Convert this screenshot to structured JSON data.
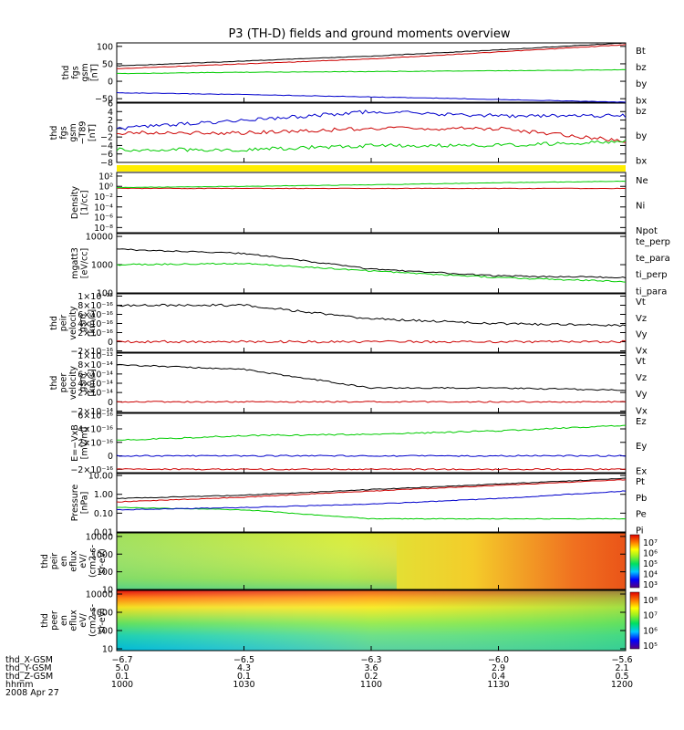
{
  "title": "P3 (TH-D) fields and ground moments overview",
  "panels": [
    {
      "id": "fgs",
      "ylabel": [
        "thd",
        "fgs",
        "gsm",
        "[nT]"
      ],
      "ticks": [
        "100",
        "50",
        "0",
        "−50"
      ],
      "legend": [
        {
          "text": "Bt",
          "color": "#000000"
        },
        {
          "text": "bz",
          "color": "#cc0000"
        },
        {
          "text": "by",
          "color": "#00cc00"
        },
        {
          "text": "bx",
          "color": "#0000cc"
        }
      ]
    },
    {
      "id": "fgs_hp",
      "ylabel": [
        "thd",
        "fgs",
        "gsm",
        "−T89",
        "[nT]"
      ],
      "ticks": [
        "6",
        "4",
        "2",
        "0",
        "−2",
        "−4",
        "−6",
        "−8"
      ],
      "legend": [
        {
          "text": "bz",
          "color": "#cc0000"
        },
        {
          "text": "by",
          "color": "#00cc00"
        },
        {
          "text": "bx",
          "color": "#0000cc"
        }
      ]
    },
    {
      "id": "density",
      "ylabel": [
        "Density",
        "[1/cc]"
      ],
      "ticks": [
        "10²",
        "10⁰",
        "10⁻²",
        "10⁻⁴",
        "10⁻⁶",
        "10⁻⁸"
      ],
      "legend": [
        {
          "text": "Ne",
          "color": "#cc0000"
        },
        {
          "text": "Ni",
          "color": "#00cc00"
        },
        {
          "text": "Npot",
          "color": "#0000cc"
        }
      ]
    },
    {
      "id": "temp",
      "ylabel": [
        "mgatt3",
        "[eV/cc]"
      ],
      "ticks": [
        "10000",
        "1000",
        "100"
      ],
      "legend": [
        {
          "text": "te_perp",
          "color": "#000000"
        },
        {
          "text": "te_para",
          "color": "#cc0000"
        },
        {
          "text": "ti_perp",
          "color": "#00cc00"
        },
        {
          "text": "ti_para",
          "color": "#0000cc"
        }
      ]
    },
    {
      "id": "ivel",
      "ylabel": [
        "thd",
        "peir",
        "velocity",
        "gsm",
        "[km/s]"
      ],
      "ticks": [
        "1×10⁻¹⁵",
        "8×10⁻¹⁶",
        "6×10⁻¹⁶",
        "4×10⁻¹⁶",
        "2×10⁻¹⁶",
        "0",
        "−2×10⁻¹⁶"
      ],
      "legend": [
        {
          "text": "Vt",
          "color": "#000000"
        },
        {
          "text": "Vz",
          "color": "#cc0000"
        },
        {
          "text": "Vy",
          "color": "#00cc00"
        },
        {
          "text": "Vx",
          "color": "#0000cc"
        }
      ]
    },
    {
      "id": "evel",
      "ylabel": [
        "thd",
        "peer",
        "velocity",
        "gsm",
        "[km/s]"
      ],
      "ticks": [
        "1×10⁻¹³",
        "8×10⁻¹⁴",
        "6×10⁻¹⁴",
        "4×10⁻¹⁴",
        "2×10⁻¹⁴",
        "0",
        "−2×10⁻¹⁴"
      ],
      "legend": [
        {
          "text": "Vt",
          "color": "#000000"
        },
        {
          "text": "Vz",
          "color": "#cc0000"
        },
        {
          "text": "Vy",
          "color": "#00cc00"
        },
        {
          "text": "Vx",
          "color": "#0000cc"
        }
      ]
    },
    {
      "id": "efield",
      "ylabel": [
        "E=−VxB",
        "[mV/m]"
      ],
      "ticks": [
        "6×10⁻¹⁶",
        "4×10⁻¹⁶",
        "2×10⁻¹⁶",
        "0",
        "−2×10⁻¹⁶"
      ],
      "legend": [
        {
          "text": "Ez",
          "color": "#cc0000"
        },
        {
          "text": "Ey",
          "color": "#00cc00"
        },
        {
          "text": "Ex",
          "color": "#0000cc"
        }
      ]
    },
    {
      "id": "pressure",
      "ylabel": [
        "Pressure",
        "[nPa]"
      ],
      "ticks": [
        "10.00",
        "1.00",
        "0.10",
        "0.01"
      ],
      "legend": [
        {
          "text": "Pt",
          "color": "#000000"
        },
        {
          "text": "Pb",
          "color": "#cc0000"
        },
        {
          "text": "Pe",
          "color": "#00cc00"
        },
        {
          "text": "Pi",
          "color": "#0000cc"
        }
      ]
    },
    {
      "id": "ispec",
      "ylabel": [
        "thd",
        "peir",
        "en",
        "eflux",
        "eV/",
        "(cm2-s-",
        "sr-eV)"
      ],
      "ticks": [
        "10000",
        "1000",
        "100",
        "10"
      ],
      "colorbar": [
        "10⁷",
        "10⁶",
        "10⁵",
        "10⁴",
        "10³"
      ]
    },
    {
      "id": "espec",
      "ylabel": [
        "thd",
        "peer",
        "en",
        "eflux",
        "eV/",
        "(cm2-s-",
        "sr-eV)"
      ],
      "ticks": [
        "10000",
        "1000",
        "100",
        "10"
      ],
      "colorbar": [
        "10⁸",
        "10⁷",
        "10⁶",
        "10⁵"
      ]
    }
  ],
  "xaxis": {
    "row_labels": [
      "thd_X-GSM",
      "thd_Y-GSM",
      "thd_Z-GSM",
      "hhmm",
      "2008 Apr 27"
    ],
    "columns": [
      {
        "x": "−6.7",
        "y": "5.0",
        "z": "0.1",
        "t": "1000"
      },
      {
        "x": "−6.5",
        "y": "4.3",
        "z": "0.1",
        "t": "1030"
      },
      {
        "x": "−6.3",
        "y": "3.6",
        "z": "0.2",
        "t": "1100"
      },
      {
        "x": "−6.0",
        "y": "2.9",
        "z": "0.4",
        "t": "1130"
      },
      {
        "x": "−5.6",
        "y": "2.1",
        "z": "0.5",
        "t": "1200"
      }
    ]
  },
  "chart_data": [
    {
      "type": "line",
      "title": "",
      "ylabel": "thd fgs gsm [nT]",
      "ylim": [
        -60,
        110
      ],
      "x": [
        "1000",
        "1030",
        "1100",
        "1130",
        "1200"
      ],
      "series": [
        {
          "name": "Bt",
          "values": [
            44,
            58,
            72,
            90,
            110
          ]
        },
        {
          "name": "bz",
          "values": [
            36,
            50,
            64,
            84,
            105
          ]
        },
        {
          "name": "by",
          "values": [
            22,
            26,
            28,
            30,
            33
          ]
        },
        {
          "name": "bx",
          "values": [
            -33,
            -38,
            -45,
            -52,
            -60
          ]
        }
      ]
    },
    {
      "type": "line",
      "ylabel": "thd fgs gsm −T89 [nT]",
      "ylim": [
        -8,
        6
      ],
      "x": [
        "1000",
        "1030",
        "1100",
        "1130",
        "1200"
      ],
      "series": [
        {
          "name": "bz",
          "values": [
            -1,
            -1,
            0,
            0,
            -3
          ]
        },
        {
          "name": "by",
          "values": [
            -5,
            -5,
            -4,
            -4,
            -3
          ]
        },
        {
          "name": "bx",
          "values": [
            0,
            2,
            4,
            3,
            3
          ]
        }
      ]
    },
    {
      "type": "line",
      "ylabel": "Density [1/cc]",
      "x": [
        "1000",
        "1030",
        "1100",
        "1130",
        "1200"
      ],
      "series": [
        {
          "name": "Ne",
          "values": [
            0.4,
            0.4,
            0.4,
            0.4,
            0.4
          ]
        },
        {
          "name": "Ni",
          "values": [
            0.6,
            1,
            2,
            5,
            10
          ]
        }
      ]
    },
    {
      "type": "line",
      "ylabel": "mgatt3 [eV/cc]",
      "ylim": [
        100,
        10000
      ],
      "x": [
        "1000",
        "1030",
        "1100",
        "1130",
        "1200"
      ],
      "series": [
        {
          "name": "te_perp",
          "values": [
            3500,
            2500,
            700,
            400,
            350
          ]
        },
        {
          "name": "ti_perp",
          "values": [
            1000,
            1100,
            600,
            350,
            250
          ]
        }
      ]
    },
    {
      "type": "line",
      "ylabel": "thd peir velocity gsm [km/s]",
      "x": [
        "1000",
        "1030",
        "1100",
        "1130",
        "1200"
      ],
      "series": [
        {
          "name": "Vt",
          "values": [
            8e-16,
            8e-16,
            5e-16,
            4e-16,
            3.5e-16
          ]
        },
        {
          "name": "Vz",
          "values": [
            0,
            0,
            0,
            0,
            0
          ]
        }
      ]
    },
    {
      "type": "line",
      "ylabel": "thd peer velocity gsm [km/s]",
      "x": [
        "1000",
        "1030",
        "1100",
        "1130",
        "1200"
      ],
      "series": [
        {
          "name": "Vt",
          "values": [
            8e-14,
            7e-14,
            3e-14,
            3e-14,
            2.5e-14
          ]
        },
        {
          "name": "Vz",
          "values": [
            0,
            0,
            0,
            0,
            0
          ]
        }
      ]
    },
    {
      "type": "line",
      "ylabel": "E=−VxB [mV/m]",
      "x": [
        "1000",
        "1030",
        "1100",
        "1130",
        "1200"
      ],
      "series": [
        {
          "name": "Ez",
          "values": [
            -2e-16,
            -2e-16,
            -2e-16,
            -2e-16,
            -2e-16
          ]
        },
        {
          "name": "Ey",
          "values": [
            2.3e-16,
            3e-16,
            3.2e-16,
            3.7e-16,
            4.5e-16
          ]
        },
        {
          "name": "Ex",
          "values": [
            0,
            0,
            0,
            0,
            0
          ]
        }
      ]
    },
    {
      "type": "line",
      "ylabel": "Pressure [nPa]",
      "ylim": [
        0.01,
        10
      ],
      "x": [
        "1000",
        "1030",
        "1100",
        "1130",
        "1200"
      ],
      "series": [
        {
          "name": "Pt",
          "values": [
            0.6,
            0.9,
            1.8,
            3.5,
            7
          ]
        },
        {
          "name": "Pb",
          "values": [
            0.4,
            0.7,
            1.5,
            3,
            6
          ]
        },
        {
          "name": "Pe",
          "values": [
            0.2,
            0.15,
            0.05,
            0.05,
            0.05
          ]
        },
        {
          "name": "Pi",
          "values": [
            0.15,
            0.2,
            0.3,
            0.6,
            1.5
          ]
        }
      ]
    },
    {
      "type": "heatmap",
      "ylabel": "thd peir en eflux",
      "ylim": [
        10,
        10000
      ]
    },
    {
      "type": "heatmap",
      "ylabel": "thd peer en eflux",
      "ylim": [
        10,
        10000
      ]
    }
  ],
  "colors": {
    "black": "#000000",
    "red": "#cc0000",
    "green": "#00cc00",
    "blue": "#0000cc",
    "yellow": "#ffee00"
  }
}
